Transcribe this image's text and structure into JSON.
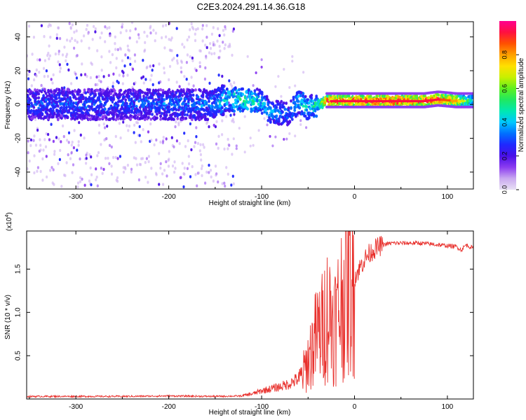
{
  "title": "C2E3.2024.291.14.36.G18",
  "chart_data": [
    {
      "type": "heatmap",
      "xlabel": "Height of straight line (km)",
      "ylabel": "Frequency (Hz)",
      "xlim": [
        -353,
        128
      ],
      "ylim": [
        -50,
        49
      ],
      "xticks": [
        -300,
        -200,
        -100,
        0,
        100
      ],
      "xtick_labels": [
        "-300",
        "-200",
        "-100",
        "0",
        "100"
      ],
      "yticks": [
        -40,
        -20,
        0,
        20,
        40
      ],
      "ytick_labels": [
        "-40",
        "-20",
        "0",
        "20",
        "40"
      ],
      "colorbar": {
        "label": "Normalized spectral amplitude",
        "range": [
          0,
          1
        ],
        "ticks": [
          0.0,
          0.2,
          0.4,
          0.6,
          0.8
        ],
        "tick_labels": [
          "0.0",
          "0.2",
          "0.4",
          "0.6",
          "0.8"
        ],
        "colors": [
          "#e8e0f4",
          "#c9a8f0",
          "#8b3cf0",
          "#4a10e8",
          "#1f28ff",
          "#0070ff",
          "#00c8ff",
          "#00e8b0",
          "#20e860",
          "#60f020",
          "#c8f000",
          "#ffe000",
          "#ffa000",
          "#ff5000",
          "#ff1040",
          "#ff0090"
        ]
      },
      "ridge": [
        {
          "x": -350,
          "freq": 0,
          "amp": 0.3
        },
        {
          "x": -300,
          "freq": 0,
          "amp": 0.32
        },
        {
          "x": -250,
          "freq": 0,
          "amp": 0.3
        },
        {
          "x": -200,
          "freq": 0,
          "amp": 0.33
        },
        {
          "x": -150,
          "freq": 0,
          "amp": 0.35
        },
        {
          "x": -140,
          "freq": 3,
          "amp": 0.45
        },
        {
          "x": -120,
          "freq": 3,
          "amp": 0.5
        },
        {
          "x": -100,
          "freq": 2,
          "amp": 0.45
        },
        {
          "x": -90,
          "freq": -5,
          "amp": 0.4
        },
        {
          "x": -80,
          "freq": -5,
          "amp": 0.35
        },
        {
          "x": -70,
          "freq": -5,
          "amp": 0.35
        },
        {
          "x": -60,
          "freq": 2,
          "amp": 0.45
        },
        {
          "x": -50,
          "freq": -2,
          "amp": 0.45
        },
        {
          "x": -40,
          "freq": 0,
          "amp": 0.5
        },
        {
          "x": -30,
          "freq": 2,
          "amp": 0.9
        },
        {
          "x": 0,
          "freq": 2,
          "amp": 0.95
        },
        {
          "x": 50,
          "freq": 2,
          "amp": 0.95
        },
        {
          "x": 75,
          "freq": 2,
          "amp": 0.9
        },
        {
          "x": 90,
          "freq": 3,
          "amp": 0.92
        },
        {
          "x": 110,
          "freq": 2,
          "amp": 0.8
        },
        {
          "x": 125,
          "freq": 2,
          "amp": 0.5
        }
      ]
    },
    {
      "type": "line",
      "xlabel": "Height of straight line (km)",
      "ylabel": "SNR (10 * v/v)",
      "y_multiplier": "(x10",
      "y_multiplier_exp": "4",
      "y_multiplier_close": ")",
      "xlim": [
        -353,
        128
      ],
      "ylim": [
        0,
        1.94
      ],
      "xticks": [
        -300,
        -200,
        -100,
        0,
        100
      ],
      "xtick_labels": [
        "-300",
        "-200",
        "-100",
        "0",
        "100"
      ],
      "yticks": [
        0.5,
        1.0,
        1.5
      ],
      "ytick_labels": [
        "0.5",
        "1.0",
        "1.5"
      ],
      "color": "#e8302c",
      "series": [
        {
          "x": [
            -353,
            -300,
            -250,
            -200,
            -150,
            -120,
            -110,
            -100,
            -90,
            -80,
            -70,
            -60,
            -55,
            -50,
            -45,
            -40,
            -35,
            -30,
            -25,
            -20,
            -15,
            -10,
            -5,
            0,
            5,
            10,
            15,
            20,
            25,
            30,
            40,
            50,
            60,
            70,
            80,
            90,
            100,
            110,
            115,
            120,
            128
          ],
          "y": [
            0.03,
            0.03,
            0.03,
            0.035,
            0.03,
            0.035,
            0.05,
            0.08,
            0.1,
            0.12,
            0.15,
            0.2,
            0.3,
            0.45,
            0.6,
            0.75,
            0.8,
            1.0,
            0.95,
            0.9,
            1.1,
            1.3,
            1.35,
            1.4,
            1.5,
            1.6,
            1.67,
            1.72,
            1.75,
            1.78,
            1.8,
            1.8,
            1.8,
            1.8,
            1.79,
            1.78,
            1.77,
            1.76,
            1.72,
            1.78,
            1.74
          ]
        }
      ]
    }
  ]
}
